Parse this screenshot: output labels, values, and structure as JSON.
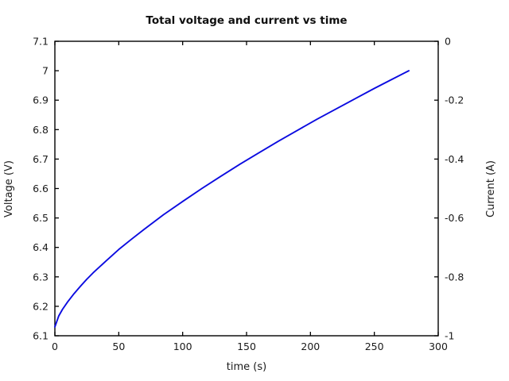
{
  "title": "Total voltage and current vs time",
  "chart_data": {
    "type": "line",
    "title": "Total voltage and current vs time",
    "xlabel": "time (s)",
    "ylabel_left": "Voltage (V)",
    "ylabel_right": "Current (A)",
    "xlim": [
      0,
      300
    ],
    "ylim_left": [
      6.1,
      7.1
    ],
    "ylim_right": [
      -1,
      0
    ],
    "xtick_labels": [
      "0",
      "50",
      "100",
      "150",
      "200",
      "250",
      "300"
    ],
    "ytick_labels_left": [
      "6.1",
      "6.2",
      "6.3",
      "6.4",
      "6.5",
      "6.6",
      "6.7",
      "6.8",
      "6.9",
      "7",
      "7.1"
    ],
    "ytick_labels_right": [
      "-1",
      "-0.8",
      "-0.6",
      "-0.4",
      "-0.2",
      "0"
    ],
    "grid": false,
    "legend": "none",
    "colors": {
      "voltage_line": "#0b0bе0",
      "left_tick_text": "#1414d7",
      "right_tick_text": "#e8a11e",
      "frame": "#000000"
    },
    "series": [
      {
        "name": "Total voltage",
        "axis": "left",
        "color": "#0b0be0",
        "x": [
          0,
          3,
          6,
          10,
          15,
          20,
          25,
          30,
          40,
          50,
          60,
          70,
          85,
          100,
          115,
          130,
          145,
          160,
          175,
          190,
          205,
          220,
          235,
          250,
          263,
          277
        ],
        "y": [
          6.13,
          6.167,
          6.19,
          6.215,
          6.243,
          6.268,
          6.292,
          6.314,
          6.354,
          6.393,
          6.428,
          6.462,
          6.511,
          6.556,
          6.6,
          6.642,
          6.683,
          6.722,
          6.761,
          6.798,
          6.835,
          6.87,
          6.905,
          6.94,
          6.969,
          7.0
        ]
      }
    ]
  }
}
